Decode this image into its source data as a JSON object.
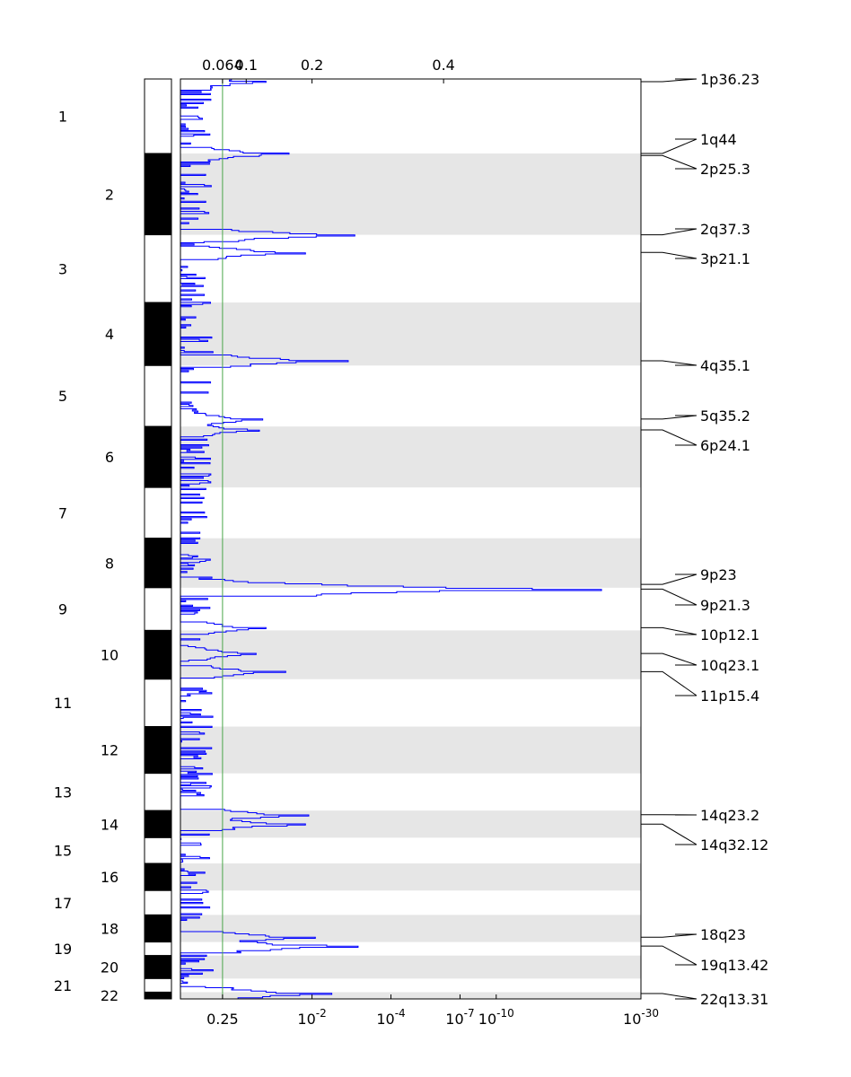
{
  "chart_data": {
    "type": "genome-significance-plot",
    "title": "",
    "top_axis": {
      "quantity": "G-score",
      "ticks": [
        {
          "label": "0.064",
          "value": 0.064
        },
        {
          "label": "0.1",
          "value": 0.1
        },
        {
          "label": "0.2",
          "value": 0.2
        },
        {
          "label": "0.4",
          "value": 0.4
        }
      ]
    },
    "bottom_axis": {
      "quantity": "q-value",
      "ticks": [
        {
          "label": "0.25",
          "base": "",
          "exp": ""
        },
        {
          "label": "10-2",
          "base": "10",
          "exp": "-2"
        },
        {
          "label": "10-4",
          "base": "10",
          "exp": "-4"
        },
        {
          "label": "10-7",
          "base": "10",
          "exp": "-7"
        },
        {
          "label": "10-10",
          "base": "10",
          "exp": "-10"
        },
        {
          "label": "10-30",
          "base": "10",
          "exp": "-30"
        }
      ]
    },
    "threshold": {
      "g_score": 0.064,
      "q_value": 0.25,
      "color": "#4aa64a"
    },
    "score_range": [
      0,
      0.7
    ],
    "colors": {
      "trace": "#0000ff",
      "band_shade": "#e6e6e6",
      "chrom_dark": "#000000",
      "chrom_light": "#ffffff"
    },
    "chromosomes": [
      {
        "name": "1",
        "size": 11.0
      },
      {
        "name": "2",
        "size": 12.0
      },
      {
        "name": "3",
        "size": 10.0
      },
      {
        "name": "4",
        "size": 9.3
      },
      {
        "name": "5",
        "size": 9.0
      },
      {
        "name": "6",
        "size": 9.0
      },
      {
        "name": "7",
        "size": 7.5
      },
      {
        "name": "8",
        "size": 7.3
      },
      {
        "name": "9",
        "size": 6.3
      },
      {
        "name": "10",
        "size": 7.2
      },
      {
        "name": "11",
        "size": 7.0
      },
      {
        "name": "12",
        "size": 6.9
      },
      {
        "name": "13",
        "size": 5.5
      },
      {
        "name": "14",
        "size": 4.0
      },
      {
        "name": "15",
        "size": 3.8
      },
      {
        "name": "16",
        "size": 4.0
      },
      {
        "name": "17",
        "size": 3.6
      },
      {
        "name": "18",
        "size": 4.0
      },
      {
        "name": "19",
        "size": 2.0
      },
      {
        "name": "20",
        "size": 3.4
      },
      {
        "name": "21",
        "size": 2.0
      },
      {
        "name": "22",
        "size": 1.0
      }
    ],
    "peaks": [
      {
        "label": "1p36.23",
        "pos": 0.4,
        "score": 0.13
      },
      {
        "label": "1q44",
        "pos": 11.0,
        "score": 0.165
      },
      {
        "label": "2p25.3",
        "pos": 11.3,
        "score": 0.12
      },
      {
        "label": "2q37.3",
        "pos": 23.0,
        "score": 0.265
      },
      {
        "label": "3p21.1",
        "pos": 25.6,
        "score": 0.19
      },
      {
        "label": "4q35.1",
        "pos": 41.6,
        "score": 0.255
      },
      {
        "label": "5q35.2",
        "pos": 50.2,
        "score": 0.125
      },
      {
        "label": "6p24.1",
        "pos": 51.8,
        "score": 0.12
      },
      {
        "label": "9p23",
        "pos": 74.6,
        "score": 0.215
      },
      {
        "label": "9p21.3",
        "pos": 75.3,
        "score": 0.64
      },
      {
        "label": "10p12.1",
        "pos": 81.0,
        "score": 0.13
      },
      {
        "label": "10q23.1",
        "pos": 84.8,
        "score": 0.115
      },
      {
        "label": "11p15.4",
        "pos": 87.5,
        "score": 0.16
      },
      {
        "label": "14q23.2",
        "pos": 108.6,
        "score": 0.195
      },
      {
        "label": "14q32.12",
        "pos": 110.0,
        "score": 0.19
      },
      {
        "label": "18q23",
        "pos": 126.7,
        "score": 0.205
      },
      {
        "label": "19q13.42",
        "pos": 128.0,
        "score": 0.27
      },
      {
        "label": "22q13.31",
        "pos": 135.0,
        "score": 0.23
      }
    ]
  }
}
